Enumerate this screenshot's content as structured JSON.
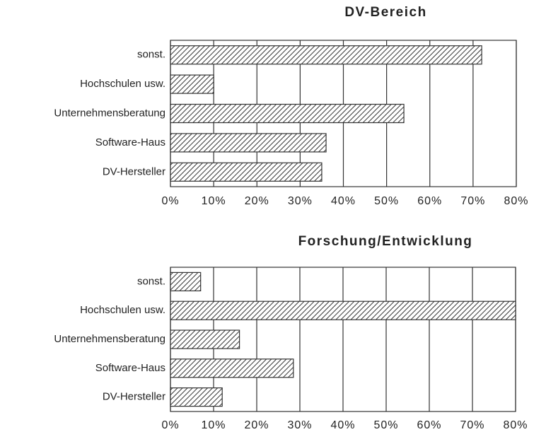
{
  "chart_data": [
    {
      "type": "bar",
      "orientation": "horizontal",
      "title": "DV-Bereich",
      "categories": [
        "sonst.",
        "Hochschulen usw.",
        "Unternehmensberatung",
        "Software-Haus",
        "DV-Hersteller"
      ],
      "values": [
        72,
        10,
        54,
        36,
        35
      ],
      "color": "#333333",
      "xlim": [
        0,
        80
      ],
      "xticks": [
        {
          "value": 0,
          "label": "0%"
        },
        {
          "value": 10,
          "label": "10%"
        },
        {
          "value": 20,
          "label": "20%"
        },
        {
          "value": 30,
          "label": "30%"
        },
        {
          "value": 40,
          "label": "40%"
        },
        {
          "value": 50,
          "label": "50%"
        },
        {
          "value": 60,
          "label": "60%"
        },
        {
          "value": 70,
          "label": "70%"
        },
        {
          "value": 80,
          "label": "80%"
        }
      ],
      "grid": true
    },
    {
      "type": "bar",
      "orientation": "horizontal",
      "title": "Forschung/Entwicklung",
      "categories": [
        "sonst.",
        "Hochschulen usw.",
        "Unternehmensberatung",
        "Software-Haus",
        "DV-Hersteller"
      ],
      "values": [
        7,
        80,
        16,
        28.5,
        12
      ],
      "color": "#333333",
      "xlim": [
        0,
        80
      ],
      "xticks": [
        {
          "value": 0,
          "label": "0%"
        },
        {
          "value": 10,
          "label": "10%"
        },
        {
          "value": 20,
          "label": "20%"
        },
        {
          "value": 30,
          "label": "30%"
        },
        {
          "value": 40,
          "label": "40%"
        },
        {
          "value": 50,
          "label": "50%"
        },
        {
          "value": 60,
          "label": "60%"
        },
        {
          "value": 70,
          "label": "70%"
        },
        {
          "value": 80,
          "label": "80%"
        }
      ],
      "grid": true
    }
  ]
}
